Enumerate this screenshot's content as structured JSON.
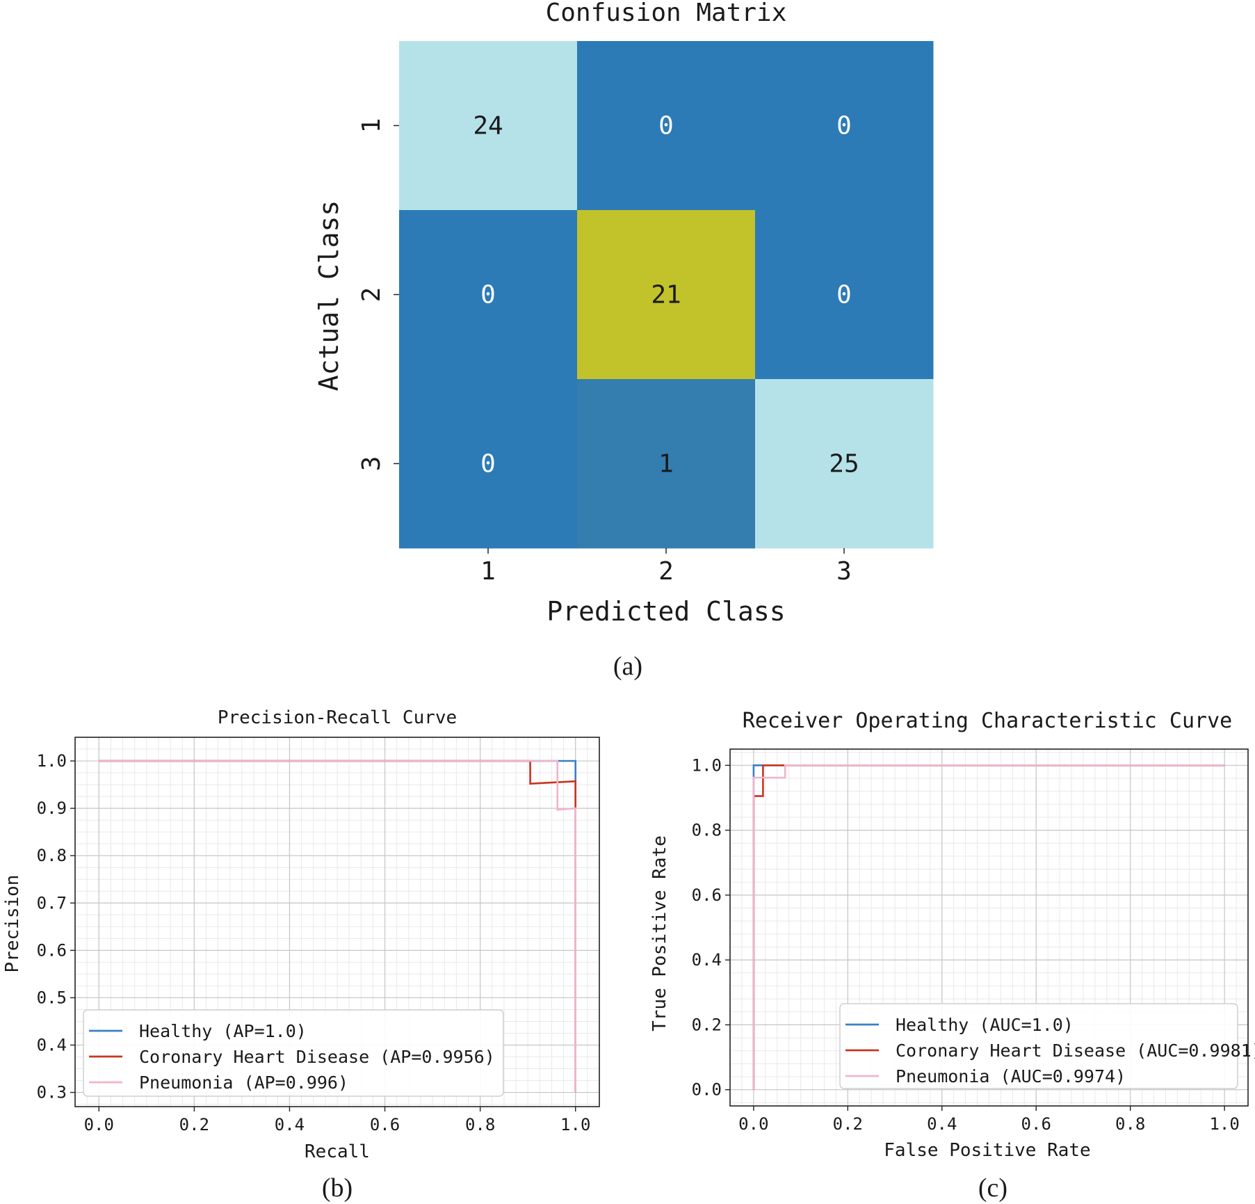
{
  "captions": {
    "a": "(a)",
    "b": "(b)",
    "c": "(c)"
  },
  "colors": {
    "cm_low": "#2c7bb6",
    "cm_mid": "#b5e2e9",
    "cm_high": "#c2c22a",
    "healthy": "#3a7fc4",
    "chd": "#c8341f",
    "pneumonia": "#f0b4cc",
    "grid_major": "#c6c6c6",
    "grid_minor": "#e9e9e9"
  },
  "chart_data": [
    {
      "type": "heatmap",
      "title": "Confusion Matrix",
      "xlabel": "Predicted Class",
      "ylabel": "Actual Class",
      "x_categories": [
        "1",
        "2",
        "3"
      ],
      "y_categories": [
        "1",
        "2",
        "3"
      ],
      "values": [
        [
          24,
          0,
          0
        ],
        [
          0,
          21,
          0
        ],
        [
          0,
          1,
          25
        ]
      ]
    },
    {
      "type": "line",
      "title": "Precision-Recall Curve",
      "xlabel": "Recall",
      "ylabel": "Precision",
      "xlim": [
        -0.05,
        1.05
      ],
      "ylim": [
        0.27,
        1.05
      ],
      "xticks": [
        "0.0",
        "0.2",
        "0.4",
        "0.6",
        "0.8",
        "1.0"
      ],
      "yticks": [
        "0.3",
        "0.4",
        "0.5",
        "0.6",
        "0.7",
        "0.8",
        "0.9",
        "1.0"
      ],
      "grid": true,
      "legend_position": "lower-left",
      "series": [
        {
          "name": "Healthy (AP=1.0)",
          "color_key": "healthy",
          "x": [
            0,
            1.0,
            1.0
          ],
          "y": [
            1.0,
            1.0,
            0.3
          ]
        },
        {
          "name": "Coronary Heart Disease (AP=0.9956)",
          "color_key": "chd",
          "x": [
            0,
            0.905,
            0.905,
            1.0,
            1.0,
            1.0
          ],
          "y": [
            1.0,
            1.0,
            0.952,
            0.957,
            0.3,
            0.37
          ]
        },
        {
          "name": "Pneumonia (AP=0.996)",
          "color_key": "pneumonia",
          "x": [
            0,
            0.962,
            0.962,
            1.0,
            1.0
          ],
          "y": [
            1.0,
            1.0,
            0.897,
            0.9,
            0.3
          ]
        }
      ]
    },
    {
      "type": "line",
      "title": "Receiver Operating Characteristic Curve",
      "xlabel": "False Positive Rate",
      "ylabel": "True Positive Rate",
      "xlim": [
        -0.05,
        1.05
      ],
      "ylim": [
        -0.05,
        1.05
      ],
      "xticks": [
        "0.0",
        "0.2",
        "0.4",
        "0.6",
        "0.8",
        "1.0"
      ],
      "yticks": [
        "0.0",
        "0.2",
        "0.4",
        "0.6",
        "0.8",
        "1.0"
      ],
      "grid": true,
      "legend_position": "lower-right",
      "series": [
        {
          "name": "Healthy (AUC=1.0)",
          "color_key": "healthy",
          "x": [
            0,
            0,
            1.0
          ],
          "y": [
            0,
            1.0,
            1.0
          ]
        },
        {
          "name": "Coronary Heart Disease (AUC=0.9981)",
          "color_key": "chd",
          "x": [
            0,
            0,
            0.02,
            0.02,
            1.0
          ],
          "y": [
            0,
            0.905,
            0.905,
            1.0,
            1.0
          ]
        },
        {
          "name": "Pneumonia (AUC=0.9974)",
          "color_key": "pneumonia",
          "x": [
            0,
            0,
            0.067,
            0.067,
            1.0
          ],
          "y": [
            0,
            0.962,
            0.962,
            1.0,
            1.0
          ]
        }
      ]
    }
  ]
}
